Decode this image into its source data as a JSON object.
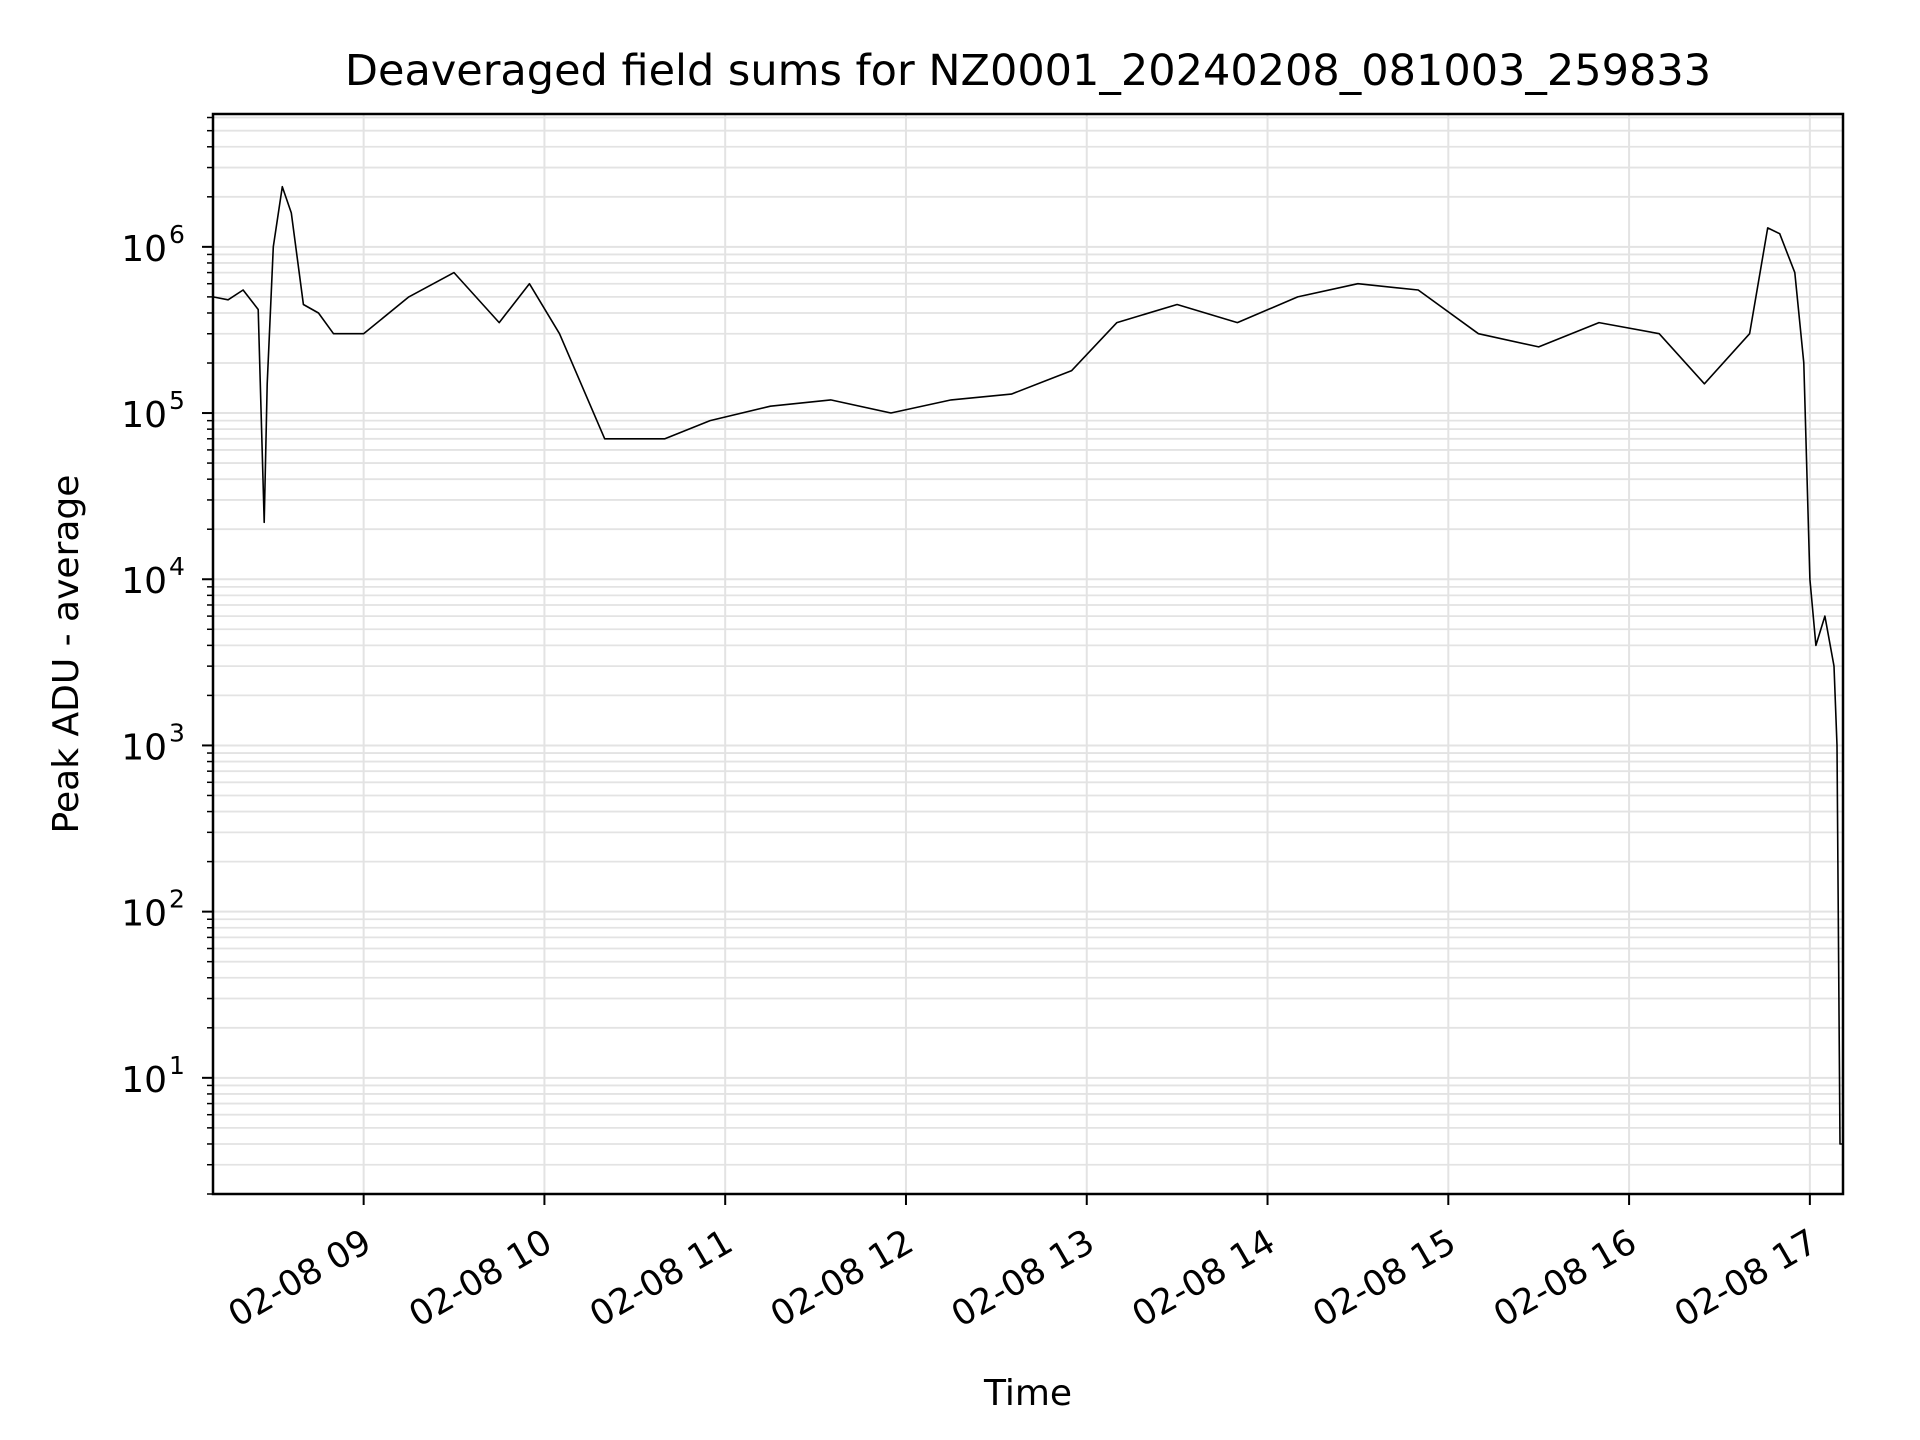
{
  "chart_data": {
    "type": "line",
    "title": "Deaveraged field sums for NZ0001_20240208_081003_259833",
    "xlabel": "Time",
    "ylabel": "Peak ADU - average",
    "yscale": "log",
    "ylim": [
      2,
      6300000.0
    ],
    "xlim": [
      "2024-02-08 08:10",
      "2024-02-08 17:11"
    ],
    "x_ticks": [
      "02-08 09",
      "02-08 10",
      "02-08 11",
      "02-08 12",
      "02-08 13",
      "02-08 14",
      "02-08 15",
      "02-08 16",
      "02-08 17"
    ],
    "y_ticks": [
      {
        "base": "10",
        "exp": "1",
        "value": 10
      },
      {
        "base": "10",
        "exp": "2",
        "value": 100
      },
      {
        "base": "10",
        "exp": "3",
        "value": 1000
      },
      {
        "base": "10",
        "exp": "4",
        "value": 10000
      },
      {
        "base": "10",
        "exp": "5",
        "value": 100000
      },
      {
        "base": "10",
        "exp": "6",
        "value": 1000000
      }
    ],
    "grid": true,
    "line_color": "#000000",
    "grid_color": "#e3e3e3",
    "series": [
      {
        "x": [
          "2024-02-08 08:10",
          "2024-02-08 08:15",
          "2024-02-08 08:20",
          "2024-02-08 08:25",
          "2024-02-08 08:27",
          "2024-02-08 08:28",
          "2024-02-08 08:30",
          "2024-02-08 08:33",
          "2024-02-08 08:36",
          "2024-02-08 08:40",
          "2024-02-08 08:45",
          "2024-02-08 08:50",
          "2024-02-08 09:00",
          "2024-02-08 09:15",
          "2024-02-08 09:30",
          "2024-02-08 09:45",
          "2024-02-08 09:55",
          "2024-02-08 10:05",
          "2024-02-08 10:20",
          "2024-02-08 10:40",
          "2024-02-08 10:55",
          "2024-02-08 11:15",
          "2024-02-08 11:35",
          "2024-02-08 11:55",
          "2024-02-08 12:15",
          "2024-02-08 12:35",
          "2024-02-08 12:55",
          "2024-02-08 13:10",
          "2024-02-08 13:30",
          "2024-02-08 13:50",
          "2024-02-08 14:10",
          "2024-02-08 14:30",
          "2024-02-08 14:50",
          "2024-02-08 15:10",
          "2024-02-08 15:30",
          "2024-02-08 15:50",
          "2024-02-08 16:10",
          "2024-02-08 16:25",
          "2024-02-08 16:40",
          "2024-02-08 16:46",
          "2024-02-08 16:50",
          "2024-02-08 16:55",
          "2024-02-08 16:58",
          "2024-02-08 17:00",
          "2024-02-08 17:02",
          "2024-02-08 17:05",
          "2024-02-08 17:08",
          "2024-02-08 17:09",
          "2024-02-08 17:10",
          "2024-02-08 17:11"
        ],
        "values": [
          500000,
          480000,
          550000,
          420000,
          22000,
          150000,
          1000000,
          2300000,
          1600000,
          450000,
          400000,
          300000,
          300000,
          500000,
          700000,
          350000,
          600000,
          300000,
          70000,
          70000,
          90000,
          110000,
          120000,
          100000,
          120000,
          130000,
          180000,
          350000,
          450000,
          350000,
          500000,
          600000,
          550000,
          300000,
          250000,
          350000,
          300000,
          150000,
          300000,
          1300000,
          1200000,
          700000,
          200000,
          10000,
          4000,
          6000,
          3000,
          1000,
          4,
          4
        ]
      }
    ]
  }
}
